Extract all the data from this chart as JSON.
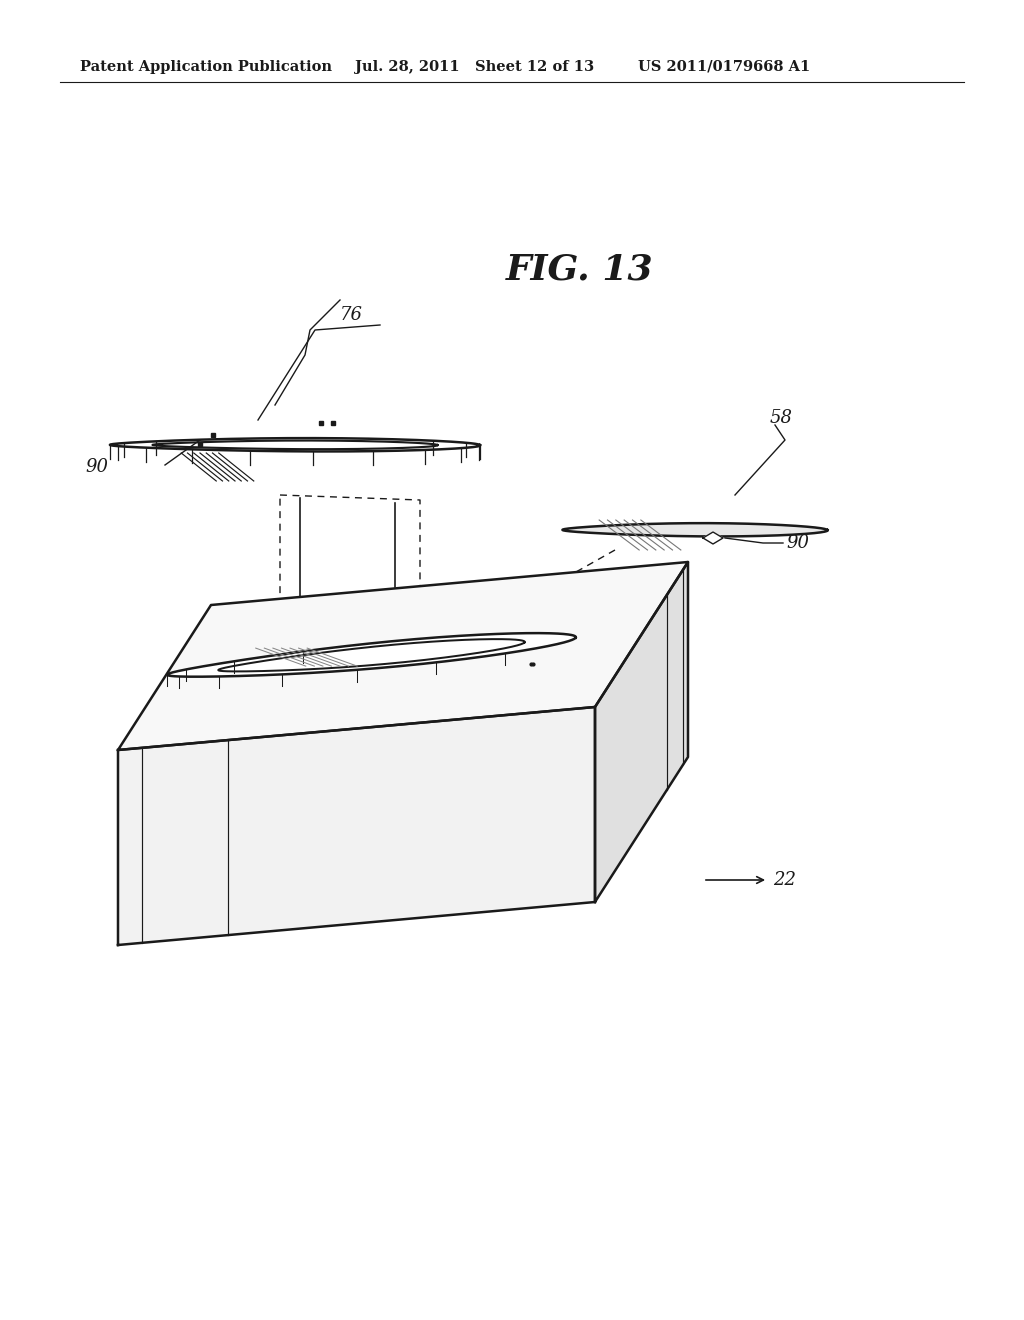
{
  "header_left": "Patent Application Publication",
  "header_mid": "Jul. 28, 2011   Sheet 12 of 13",
  "header_right": "US 2011/0179668 A1",
  "fig_title": "FIG. 13",
  "label_76": "76",
  "label_58": "58",
  "label_90a": "90",
  "label_90b": "90",
  "label_22": "22",
  "bg_color": "#ffffff",
  "line_color": "#1a1a1a",
  "line_width": 1.8,
  "header_fontsize": 10.5,
  "fig_title_fontsize": 26,
  "label_fontsize": 13
}
